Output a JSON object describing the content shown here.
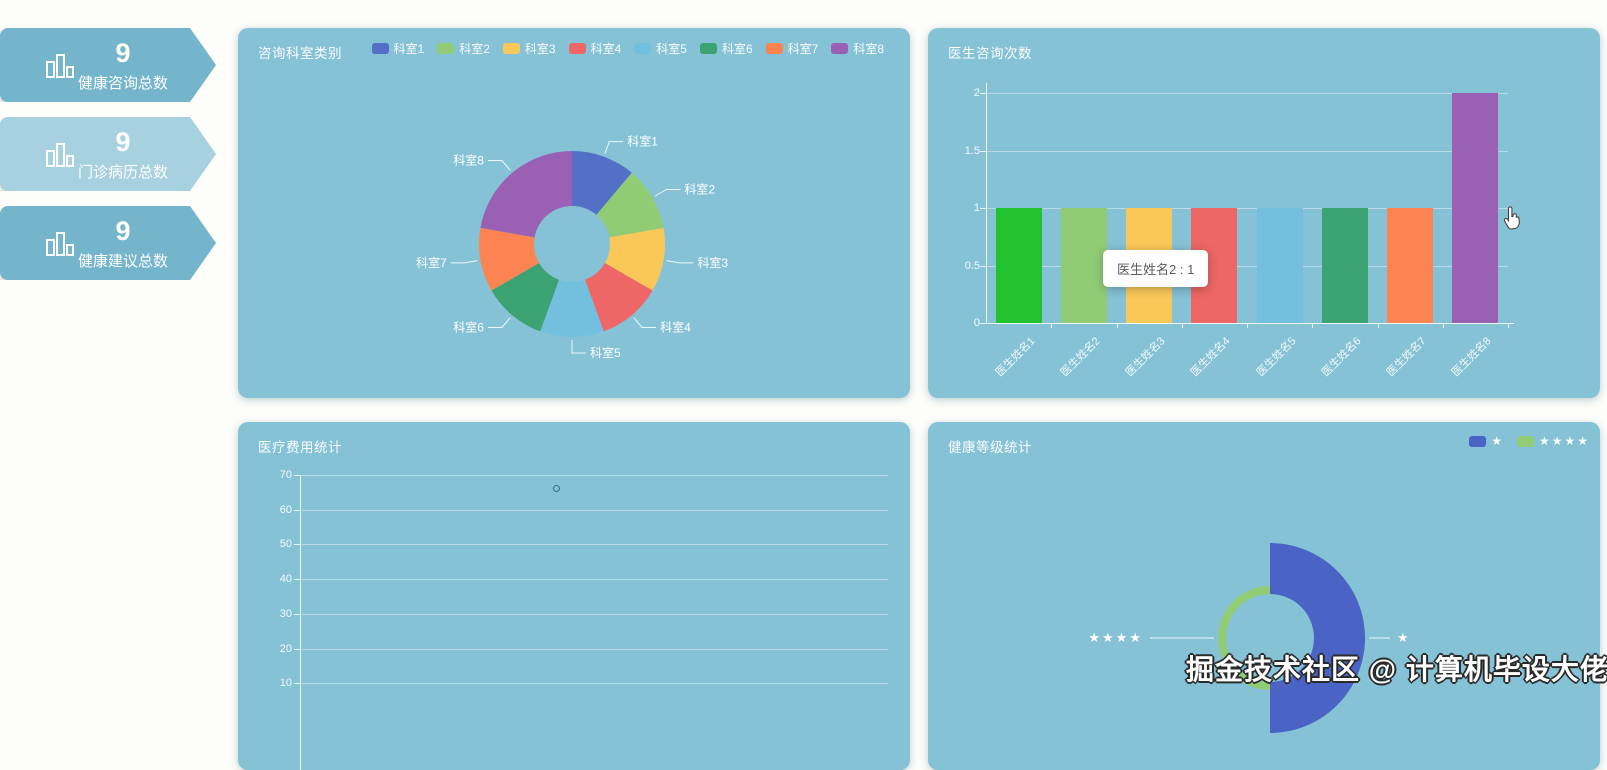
{
  "watermark": {
    "text": "掘金技术社区 @ 计算机毕设大佬"
  },
  "stat_cards": [
    {
      "value": "9",
      "label": "健康咨询总数",
      "bg": "#74b5cc"
    },
    {
      "value": "9",
      "label": "门诊病历总数",
      "bg": "#a7d1de"
    },
    {
      "value": "9",
      "label": "健康建议总数",
      "bg": "#74b5cc"
    }
  ],
  "panels": {
    "dept_pie": {
      "title": "咨询科室类别"
    },
    "doctor_bar": {
      "title": "医生咨询次数",
      "tooltip": "医生姓名2 : 1"
    },
    "cost_line": {
      "title": "医疗费用统计"
    },
    "grade_pie": {
      "title": "健康等级统计"
    }
  },
  "chart_data": [
    {
      "id": "dept_pie",
      "type": "pie",
      "title": "咨询科室类别",
      "donut": true,
      "legend_position": "top-right",
      "labels": [
        "科室1",
        "科室2",
        "科室3",
        "科室4",
        "科室5",
        "科室6",
        "科室7",
        "科室8"
      ],
      "values": [
        1,
        1,
        1,
        1,
        1,
        1,
        1,
        2
      ],
      "colors": [
        "#5470c6",
        "#91cc75",
        "#fac858",
        "#ee6666",
        "#73c0de",
        "#3ba272",
        "#fc8452",
        "#9a60b4"
      ]
    },
    {
      "id": "doctor_bar",
      "type": "bar",
      "title": "医生咨询次数",
      "categories": [
        "医生姓名1",
        "医生姓名2",
        "医生姓名3",
        "医生姓名4",
        "医生姓名5",
        "医生姓名6",
        "医生姓名7",
        "医生姓名8"
      ],
      "values": [
        1,
        1,
        1,
        1,
        1,
        1,
        1,
        2
      ],
      "colors": [
        "#22c32e",
        "#91cc75",
        "#fac858",
        "#ee6666",
        "#73c0de",
        "#3ba272",
        "#fc8452",
        "#9a60b4"
      ],
      "ylim": [
        0,
        2
      ],
      "yticks": [
        0,
        0.5,
        1,
        1.5,
        2
      ],
      "xlabel_rotate": 45,
      "tooltip": "医生姓名2 : 1",
      "grid": true
    },
    {
      "id": "cost_line",
      "type": "line",
      "title": "医疗费用统计",
      "yticks": [
        70,
        60,
        50,
        40,
        30,
        20,
        10
      ],
      "visible_y_range": [
        10,
        70
      ],
      "points": [
        {
          "value": 66
        }
      ],
      "grid": true
    },
    {
      "id": "grade_pie",
      "type": "pie",
      "variant": "nightingale-rose",
      "title": "健康等级统计",
      "legend": [
        "★",
        "★★★★"
      ],
      "slices": [
        {
          "label": "★",
          "color": "#4a63c4",
          "angle_deg": [
            0,
            180
          ],
          "outer_radius": 95,
          "inner_radius": 44
        },
        {
          "label": "★★★★",
          "color": "#91cc75",
          "angle_deg": [
            180,
            360
          ],
          "outer_radius": 52,
          "inner_radius": 44
        }
      ]
    }
  ]
}
